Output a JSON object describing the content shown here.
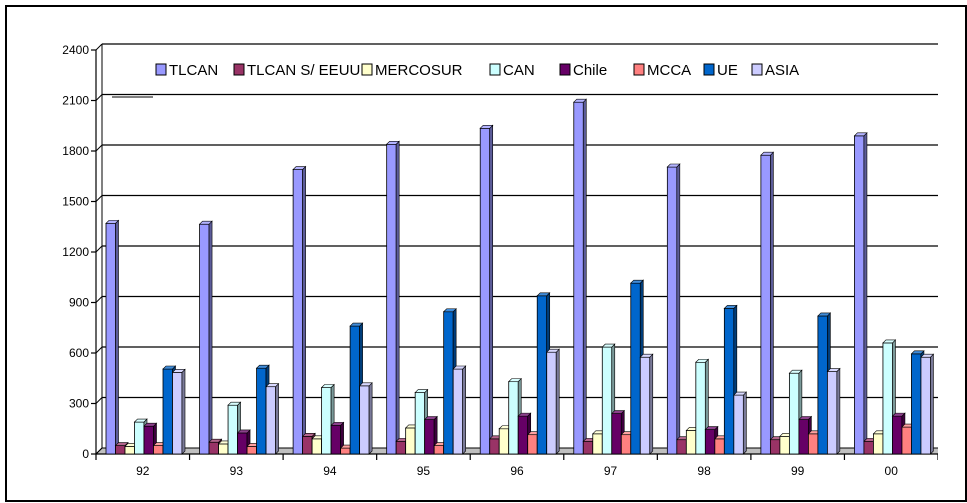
{
  "chart_data": {
    "type": "bar",
    "title": "",
    "xlabel": "",
    "ylabel": "",
    "ylim": [
      0,
      2400
    ],
    "yticks": [
      0,
      300,
      600,
      900,
      1200,
      1500,
      1800,
      2100,
      2400
    ],
    "grid": true,
    "legend_position": "top",
    "categories": [
      "92",
      "93",
      "94",
      "95",
      "96",
      "97",
      "98",
      "99",
      "00"
    ],
    "series": [
      {
        "name": "TLCAN",
        "color": "#9999ff",
        "values": [
          1370,
          1365,
          1690,
          1840,
          1935,
          2090,
          1705,
          1775,
          1890
        ]
      },
      {
        "name": "TLCAN S/ EEUU",
        "color": "#993366",
        "values": [
          50,
          70,
          105,
          75,
          90,
          75,
          85,
          85,
          75
        ]
      },
      {
        "name": "MERCOSUR",
        "color": "#ffffcc",
        "values": [
          45,
          60,
          90,
          155,
          150,
          120,
          140,
          105,
          120
        ]
      },
      {
        "name": "CAN",
        "color": "#ccffff",
        "values": [
          190,
          290,
          395,
          365,
          430,
          635,
          545,
          480,
          660
        ]
      },
      {
        "name": "Chile",
        "color": "#660066",
        "values": [
          165,
          125,
          170,
          205,
          225,
          240,
          145,
          205,
          225
        ]
      },
      {
        "name": "MCCA",
        "color": "#ff8080",
        "values": [
          50,
          45,
          35,
          50,
          115,
          115,
          90,
          120,
          160
        ]
      },
      {
        "name": "UE",
        "color": "#0066cc",
        "values": [
          505,
          510,
          760,
          845,
          940,
          1015,
          865,
          820,
          595
        ]
      },
      {
        "name": "ASIA",
        "color": "#ccccff",
        "values": [
          485,
          400,
          405,
          505,
          605,
          575,
          350,
          490,
          575
        ]
      }
    ]
  }
}
